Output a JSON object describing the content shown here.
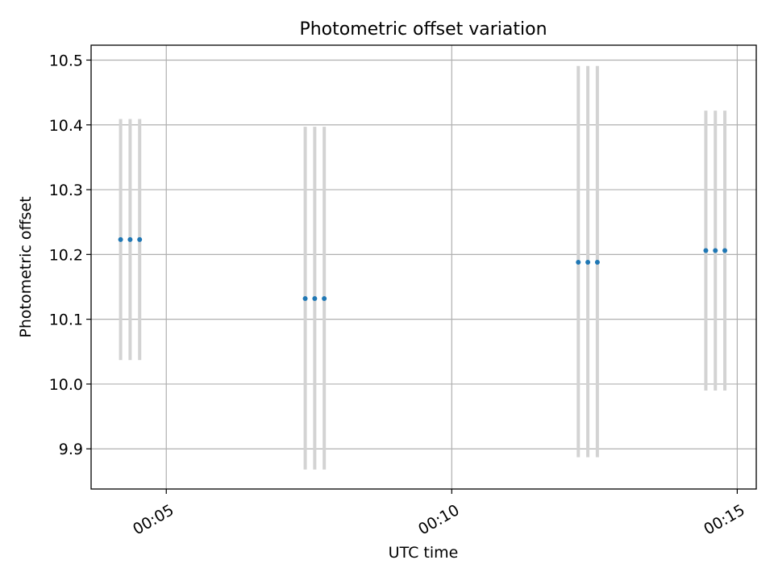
{
  "chart_data": {
    "type": "scatter",
    "title": "Photometric offset variation",
    "xlabel": "UTC time",
    "ylabel": "Photometric offset",
    "grid": true,
    "xlim": [
      "00:03:41",
      "00:15:20"
    ],
    "ylim": [
      9.838,
      10.523
    ],
    "x_ticks": [
      "00:05",
      "00:10",
      "00:15"
    ],
    "y_ticks": [
      9.9,
      10.0,
      10.1,
      10.2,
      10.3,
      10.4,
      10.5
    ],
    "y_tick_labels": [
      "9.9",
      "10.0",
      "10.1",
      "10.2",
      "10.3",
      "10.4",
      "10.5"
    ],
    "marker_color": "#1f77b4",
    "errorbar_color": "#d3d3d3",
    "points": [
      {
        "x": "00:04:12",
        "y": 10.223,
        "yerr_low": 10.037,
        "yerr_high": 10.409
      },
      {
        "x": "00:04:22",
        "y": 10.223,
        "yerr_low": 10.037,
        "yerr_high": 10.409
      },
      {
        "x": "00:04:32",
        "y": 10.223,
        "yerr_low": 10.037,
        "yerr_high": 10.409
      },
      {
        "x": "00:07:26",
        "y": 10.132,
        "yerr_low": 9.868,
        "yerr_high": 10.397
      },
      {
        "x": "00:07:36",
        "y": 10.132,
        "yerr_low": 9.868,
        "yerr_high": 10.397
      },
      {
        "x": "00:07:46",
        "y": 10.132,
        "yerr_low": 9.868,
        "yerr_high": 10.397
      },
      {
        "x": "00:12:13",
        "y": 10.188,
        "yerr_low": 9.887,
        "yerr_high": 10.491
      },
      {
        "x": "00:12:23",
        "y": 10.188,
        "yerr_low": 9.887,
        "yerr_high": 10.491
      },
      {
        "x": "00:12:33",
        "y": 10.188,
        "yerr_low": 9.887,
        "yerr_high": 10.491
      },
      {
        "x": "00:14:27",
        "y": 10.206,
        "yerr_low": 9.99,
        "yerr_high": 10.422
      },
      {
        "x": "00:14:37",
        "y": 10.206,
        "yerr_low": 9.99,
        "yerr_high": 10.422
      },
      {
        "x": "00:14:47",
        "y": 10.206,
        "yerr_low": 9.99,
        "yerr_high": 10.422
      }
    ]
  }
}
